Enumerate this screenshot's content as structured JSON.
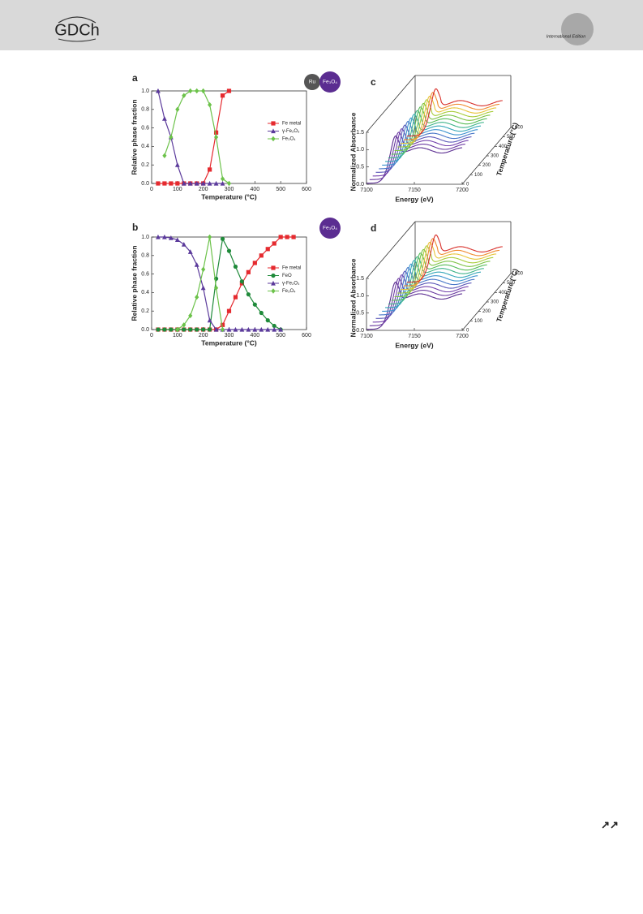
{
  "header": {
    "logo": "GDCh",
    "edition": "International Edition"
  },
  "footer": {
    "icon": "↗↗"
  },
  "chart_data": [
    {
      "type": "line",
      "label": "a",
      "badges": [
        "Ru",
        "Fe₃O₄"
      ],
      "x_label": "Temperature (°C)",
      "y_label": "Relative phase fraction",
      "x": [
        25,
        50,
        75,
        100,
        125,
        150,
        175,
        200,
        225,
        250,
        275,
        300
      ],
      "series": [
        {
          "name": "Fe metal",
          "color": "#e52a2f",
          "marker": "square",
          "values": [
            0,
            0,
            0,
            0,
            0,
            0,
            0,
            0,
            0.15,
            0.55,
            0.95,
            1.0
          ]
        },
        {
          "name": "γ-Fe₂O₃",
          "color": "#5b3a9b",
          "marker": "triangle",
          "values": [
            1.0,
            0.7,
            0.5,
            0.2,
            0,
            0,
            0,
            0,
            0,
            0,
            0,
            null
          ]
        },
        {
          "name": "Fe₃O₄",
          "color": "#6cc24a",
          "marker": "diamond",
          "values": [
            null,
            0.3,
            0.5,
            0.8,
            0.95,
            1.0,
            1.0,
            1.0,
            0.85,
            0.5,
            0.05,
            0
          ]
        }
      ],
      "xlim": [
        0,
        600
      ],
      "xticks": [
        0,
        100,
        200,
        300,
        400,
        500,
        600
      ],
      "ylim": [
        0,
        1
      ],
      "yticks": [
        {
          "value": 0,
          "label": "0.0"
        },
        0.2,
        0.4,
        0.6,
        0.8,
        {
          "value": 1,
          "label": "1.0"
        }
      ],
      "legend": "right"
    },
    {
      "type": "line",
      "label": "b",
      "badges": [
        "Fe₃O₄"
      ],
      "x_label": "Temperature (°C)",
      "y_label": "Relative phase fraction",
      "x": [
        25,
        50,
        75,
        100,
        125,
        150,
        175,
        200,
        225,
        250,
        275,
        300,
        325,
        350,
        375,
        400,
        425,
        450,
        475,
        500,
        525,
        550
      ],
      "series": [
        {
          "name": "Fe metal",
          "color": "#e52a2f",
          "marker": "square",
          "values": [
            0,
            0,
            0,
            0,
            0,
            0,
            0,
            0,
            0,
            0,
            0.05,
            0.2,
            0.35,
            0.5,
            0.62,
            0.72,
            0.8,
            0.87,
            0.93,
            1.0,
            1.0,
            1.0
          ]
        },
        {
          "name": "FeO",
          "color": "#1f8a3a",
          "marker": "circle",
          "values": [
            0,
            0,
            0,
            0,
            0,
            0,
            0,
            0,
            0,
            0.55,
            0.98,
            0.85,
            0.68,
            0.52,
            0.38,
            0.27,
            0.18,
            0.1,
            0.04,
            0,
            null,
            null
          ]
        },
        {
          "name": "γ-Fe₂O₃",
          "color": "#5b3a9b",
          "marker": "triangle",
          "values": [
            1.0,
            1.0,
            0.99,
            0.97,
            0.92,
            0.84,
            0.7,
            0.45,
            0.1,
            0,
            0,
            0,
            0,
            0,
            0,
            0,
            0,
            0,
            0,
            0,
            null,
            null
          ]
        },
        {
          "name": "Fe₃O₄",
          "color": "#6cc24a",
          "marker": "diamond",
          "values": [
            null,
            null,
            null,
            0,
            0.05,
            0.15,
            0.35,
            0.65,
            1.0,
            0.45,
            0,
            null,
            null,
            null,
            null,
            null,
            null,
            null,
            null,
            null,
            null,
            null
          ]
        }
      ],
      "xlim": [
        0,
        600
      ],
      "xticks": [
        0,
        100,
        200,
        300,
        400,
        500,
        600
      ],
      "ylim": [
        0,
        1
      ],
      "yticks": [
        {
          "value": 0,
          "label": "0.0"
        },
        0.2,
        0.4,
        0.6,
        0.8,
        {
          "value": 1,
          "label": "1.0"
        }
      ],
      "legend": "right"
    },
    {
      "type": "waterfall",
      "label": "c",
      "x_label": "Energy (eV)",
      "y_label": "Normalized Absorbance",
      "z_label": "Temperature (°C)",
      "xlim": [
        7100,
        7200
      ],
      "xticks": [
        7100,
        7150,
        7200
      ],
      "ylim": [
        0,
        1.5
      ],
      "yticks": [
        {
          "value": 0,
          "label": "0.0"
        },
        0.5,
        {
          "value": 1,
          "label": "1.0"
        },
        1.5
      ],
      "zlim": [
        0,
        600
      ],
      "zticks": [
        0,
        100,
        200,
        300,
        400,
        500,
        600
      ],
      "colors": [
        "#5b2d91",
        "#6a3aa0",
        "#7442ad",
        "#5b58b8",
        "#4a78c8",
        "#3c93cf",
        "#35a7b8",
        "#3fb48a",
        "#55bb55",
        "#7cc244",
        "#a8cc3a",
        "#e8c43a",
        "#f08a30",
        "#d8302a"
      ]
    },
    {
      "type": "waterfall",
      "label": "d",
      "x_label": "Energy (eV)",
      "y_label": "Normalized Absorbance",
      "z_label": "Temperature (°C)",
      "xlim": [
        7100,
        7200
      ],
      "xticks": [
        7100,
        7150,
        7200
      ],
      "ylim": [
        0,
        1.5
      ],
      "yticks": [
        {
          "value": 0,
          "label": "0.0"
        },
        0.5,
        {
          "value": 1,
          "label": "1.0"
        },
        1.5
      ],
      "zlim": [
        0,
        600
      ],
      "zticks": [
        0,
        100,
        200,
        300,
        400,
        500,
        600
      ],
      "colors": [
        "#5b2d91",
        "#6a3aa0",
        "#7442ad",
        "#5b58b8",
        "#4a78c8",
        "#3c93cf",
        "#35a7b8",
        "#3fb48a",
        "#55bb55",
        "#7cc244",
        "#a8cc3a",
        "#e8c43a",
        "#f08a30",
        "#d8302a"
      ]
    }
  ]
}
